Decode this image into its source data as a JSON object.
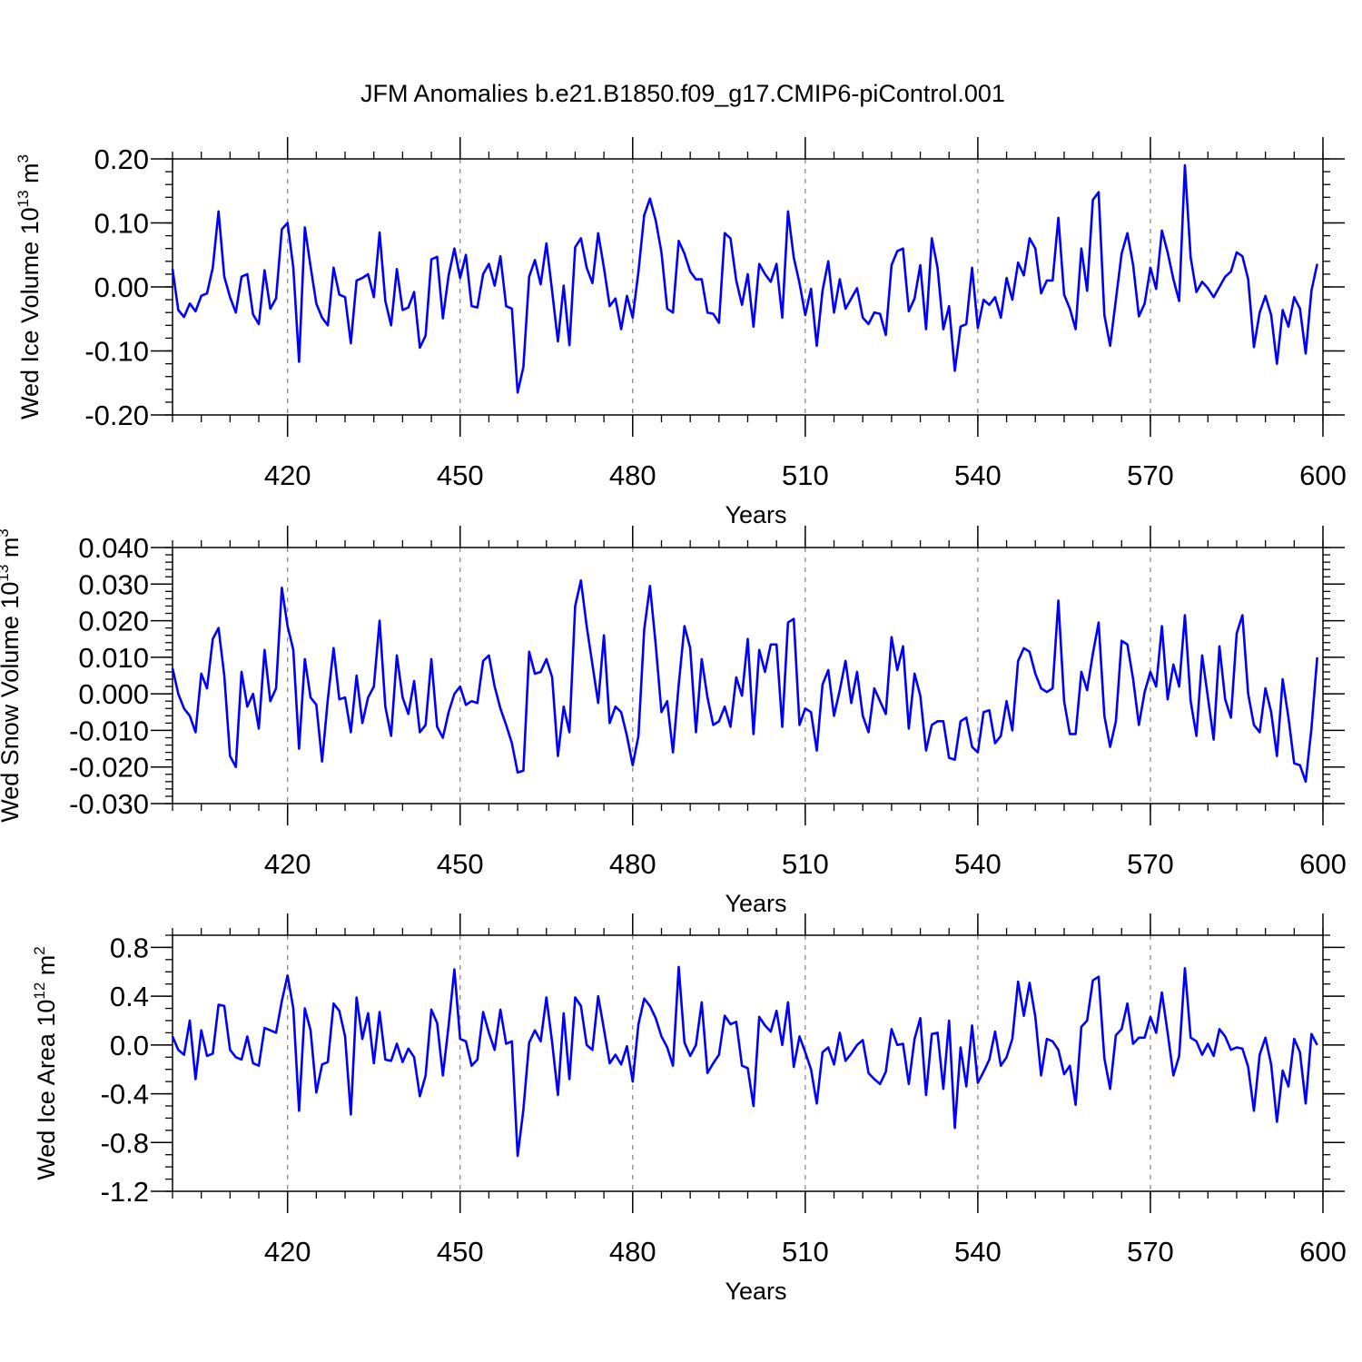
{
  "figure": {
    "title": "JFM Anomalies b.e21.B1850.f09_g17.CMIP6-piControl.001"
  },
  "colors": {
    "series": "#0000ff",
    "axis": "#000000",
    "gridline": "#7f7f7f"
  },
  "chart_data": [
    {
      "type": "line",
      "title": "JFM Anomalies b.e21.B1850.f09_g17.CMIP6-piControl.001",
      "xlabel": "Years",
      "ylabel": {
        "prefix": "Wed Ice Volume 10",
        "exponent": "13",
        "unit": " m",
        "unit_exponent": "3"
      },
      "xlim": [
        400,
        600
      ],
      "ylim": [
        -0.2,
        0.2
      ],
      "x_ticks": [
        420,
        450,
        480,
        510,
        540,
        570,
        600
      ],
      "x_tick_labels": [
        "420",
        "450",
        "480",
        "510",
        "540",
        "570",
        "600"
      ],
      "y_ticks": [
        -0.2,
        -0.1,
        0.0,
        0.1,
        0.2
      ],
      "y_tick_labels": [
        "-0.20",
        "-0.10",
        "0.00",
        "0.10",
        "0.20"
      ],
      "y_minor_step": 0.02,
      "x_minor_step": 5,
      "vertical_gridlines": "dashed at major x ticks",
      "x_start": 400,
      "x_step": 1,
      "values": [
        0.028,
        -0.036,
        -0.047,
        -0.026,
        -0.038,
        -0.014,
        -0.01,
        0.03,
        0.118,
        0.016,
        -0.016,
        -0.04,
        0.016,
        0.02,
        -0.043,
        -0.058,
        0.026,
        -0.034,
        -0.018,
        0.09,
        0.1,
        0.03,
        -0.117,
        0.093,
        0.032,
        -0.026,
        -0.048,
        -0.06,
        0.03,
        -0.012,
        -0.016,
        -0.088,
        0.01,
        0.014,
        0.02,
        -0.016,
        0.085,
        -0.022,
        -0.06,
        0.028,
        -0.036,
        -0.032,
        -0.008,
        -0.095,
        -0.076,
        0.043,
        0.047,
        -0.049,
        0.018,
        0.06,
        0.014,
        0.05,
        -0.03,
        -0.032,
        0.02,
        0.036,
        0.002,
        0.048,
        -0.03,
        -0.034,
        -0.165,
        -0.125,
        0.016,
        0.042,
        0.004,
        0.068,
        -0.007,
        -0.085,
        0.002,
        -0.091,
        0.062,
        0.076,
        0.03,
        0.006,
        0.084,
        0.03,
        -0.03,
        -0.018,
        -0.066,
        -0.014,
        -0.048,
        0.024,
        0.112,
        0.138,
        0.104,
        0.054,
        -0.034,
        -0.04,
        0.072,
        0.052,
        0.024,
        0.012,
        0.012,
        -0.04,
        -0.042,
        -0.056,
        0.084,
        0.076,
        0.01,
        -0.028,
        0.02,
        -0.062,
        0.036,
        0.02,
        0.008,
        0.036,
        -0.048,
        0.118,
        0.046,
        0.006,
        -0.044,
        -0.003,
        -0.092,
        -0.006,
        0.04,
        -0.04,
        0.012,
        -0.034,
        -0.018,
        -0.002,
        -0.048,
        -0.058,
        -0.04,
        -0.042,
        -0.075,
        0.034,
        0.056,
        0.06,
        -0.038,
        -0.018,
        0.034,
        -0.066,
        0.076,
        0.03,
        -0.066,
        -0.03,
        -0.131,
        -0.062,
        -0.058,
        0.03,
        -0.064,
        -0.02,
        -0.028,
        -0.016,
        -0.048,
        0.014,
        -0.02,
        0.038,
        0.018,
        0.076,
        0.06,
        -0.01,
        0.01,
        0.01,
        0.108,
        -0.012,
        -0.034,
        -0.066,
        0.06,
        -0.006,
        0.136,
        0.148,
        -0.044,
        -0.092,
        -0.02,
        0.052,
        0.084,
        0.034,
        -0.046,
        -0.026,
        0.03,
        -0.003,
        0.088,
        0.054,
        0.012,
        -0.022,
        0.19,
        0.046,
        -0.008,
        0.008,
        -0.002,
        -0.016,
        0.0,
        0.016,
        0.024,
        0.054,
        0.048,
        0.012,
        -0.094,
        -0.04,
        -0.014,
        -0.044,
        -0.12,
        -0.036,
        -0.062,
        -0.016,
        -0.034,
        -0.104,
        -0.006,
        0.036
      ]
    },
    {
      "type": "line",
      "xlabel": "Years",
      "ylabel": {
        "prefix": "Wed Snow Volume 10",
        "exponent": "13",
        "unit": " m",
        "unit_exponent": "3"
      },
      "xlim": [
        400,
        600
      ],
      "ylim": [
        -0.03,
        0.04
      ],
      "x_ticks": [
        420,
        450,
        480,
        510,
        540,
        570,
        600
      ],
      "x_tick_labels": [
        "420",
        "450",
        "480",
        "510",
        "540",
        "570",
        "600"
      ],
      "y_ticks": [
        -0.03,
        -0.02,
        -0.01,
        0.0,
        0.01,
        0.02,
        0.03,
        0.04
      ],
      "y_tick_labels": [
        "-0.030",
        "-0.020",
        "-0.010",
        "0.000",
        "0.010",
        "0.020",
        "0.030",
        "0.040"
      ],
      "y_minor_step": 0.002,
      "x_minor_step": 5,
      "vertical_gridlines": "dashed at major x ticks",
      "x_start": 400,
      "x_step": 1,
      "values": [
        0.007,
        0.0,
        -0.004,
        -0.006,
        -0.0105,
        0.0055,
        0.0015,
        0.015,
        0.018,
        0.005,
        -0.017,
        -0.02,
        0.006,
        -0.0035,
        0.0,
        -0.0095,
        0.012,
        -0.002,
        0.0015,
        0.029,
        0.0185,
        0.012,
        -0.015,
        0.0095,
        -0.001,
        -0.003,
        -0.0185,
        -0.0015,
        0.0125,
        -0.0015,
        -0.001,
        -0.0105,
        0.005,
        -0.008,
        -0.001,
        0.002,
        0.02,
        -0.0035,
        -0.0115,
        0.0105,
        -0.001,
        -0.0055,
        0.0035,
        -0.0105,
        -0.0085,
        0.0095,
        -0.009,
        -0.012,
        -0.005,
        0.0,
        0.002,
        -0.003,
        -0.002,
        -0.0025,
        0.009,
        0.0105,
        0.002,
        -0.004,
        -0.0085,
        -0.0135,
        -0.0215,
        -0.021,
        0.0115,
        0.0055,
        0.006,
        0.0095,
        0.0045,
        -0.017,
        -0.0035,
        -0.0105,
        0.024,
        0.031,
        0.0185,
        0.008,
        -0.0025,
        0.016,
        -0.008,
        -0.0035,
        -0.005,
        -0.0115,
        -0.0195,
        -0.0115,
        0.0175,
        0.0295,
        0.0135,
        -0.005,
        -0.002,
        -0.016,
        0.0025,
        0.0185,
        0.0125,
        -0.0105,
        0.0095,
        -0.001,
        -0.0085,
        -0.0075,
        -0.0035,
        -0.009,
        0.0045,
        -0.0005,
        0.015,
        -0.011,
        0.012,
        0.006,
        0.0135,
        0.0135,
        -0.009,
        0.0195,
        0.0205,
        -0.0085,
        -0.004,
        -0.005,
        -0.0155,
        0.0025,
        0.0065,
        -0.006,
        0.001,
        0.009,
        -0.0025,
        0.006,
        -0.006,
        -0.0105,
        0.0015,
        -0.002,
        -0.0055,
        0.0155,
        0.0065,
        0.013,
        -0.0095,
        0.0055,
        -0.0005,
        -0.0155,
        -0.0085,
        -0.0075,
        -0.0075,
        -0.0175,
        -0.018,
        -0.0075,
        -0.0065,
        -0.0145,
        -0.016,
        -0.005,
        -0.0045,
        -0.0135,
        -0.0115,
        -0.002,
        -0.01,
        0.009,
        0.0125,
        0.0115,
        0.0055,
        0.0015,
        0.0005,
        0.0015,
        0.0255,
        -0.002,
        -0.011,
        -0.011,
        0.006,
        0.001,
        0.011,
        0.0195,
        -0.006,
        -0.0145,
        -0.0075,
        0.0145,
        0.0135,
        0.004,
        -0.0085,
        0.0005,
        0.006,
        0.002,
        0.0185,
        -0.0015,
        0.008,
        0.002,
        0.0215,
        -0.002,
        -0.0115,
        0.0105,
        -0.001,
        -0.0125,
        0.013,
        -0.0015,
        -0.0065,
        0.0165,
        0.0215,
        0.0,
        -0.0085,
        -0.0105,
        0.0015,
        -0.005,
        -0.017,
        0.004,
        -0.0065,
        -0.019,
        -0.0195,
        -0.024,
        -0.0095,
        0.01
      ]
    },
    {
      "type": "line",
      "xlabel": "Years",
      "ylabel": {
        "prefix": "Wed Ice Area 10",
        "exponent": "12",
        "unit": " m",
        "unit_exponent": "2"
      },
      "xlim": [
        400,
        600
      ],
      "ylim": [
        -1.2,
        0.9
      ],
      "x_ticks": [
        420,
        450,
        480,
        510,
        540,
        570,
        600
      ],
      "x_tick_labels": [
        "420",
        "450",
        "480",
        "510",
        "540",
        "570",
        "600"
      ],
      "y_ticks": [
        -1.2,
        -0.8,
        -0.4,
        0.0,
        0.4,
        0.8
      ],
      "y_tick_labels": [
        "-1.2",
        "-0.8",
        "-0.4",
        "0.0",
        "0.4",
        "0.8"
      ],
      "y_minor_step": 0.1,
      "x_minor_step": 5,
      "vertical_gridlines": "dashed at major x ticks",
      "x_start": 400,
      "x_step": 1,
      "values": [
        0.07,
        -0.04,
        -0.08,
        0.2,
        -0.28,
        0.12,
        -0.09,
        -0.07,
        0.33,
        0.32,
        -0.04,
        -0.1,
        -0.12,
        0.07,
        -0.15,
        -0.17,
        0.14,
        0.12,
        0.1,
        0.36,
        0.57,
        0.3,
        -0.54,
        0.3,
        0.12,
        -0.39,
        -0.16,
        -0.14,
        0.34,
        0.28,
        0.07,
        -0.57,
        0.39,
        0.05,
        0.26,
        -0.15,
        0.27,
        -0.12,
        -0.13,
        0.01,
        -0.14,
        -0.03,
        -0.1,
        -0.42,
        -0.25,
        0.29,
        0.18,
        -0.25,
        0.16,
        0.62,
        0.05,
        0.03,
        -0.17,
        -0.12,
        0.27,
        0.1,
        -0.04,
        0.29,
        0.01,
        0.03,
        -0.91,
        -0.53,
        0.02,
        0.12,
        0.03,
        0.39,
        0.02,
        -0.41,
        0.26,
        -0.28,
        0.39,
        0.32,
        0.0,
        -0.04,
        0.4,
        0.13,
        -0.15,
        -0.08,
        -0.16,
        -0.01,
        -0.3,
        0.17,
        0.38,
        0.32,
        0.22,
        0.07,
        -0.02,
        -0.17,
        0.64,
        0.02,
        -0.09,
        0.0,
        0.35,
        -0.23,
        -0.15,
        -0.08,
        0.24,
        0.17,
        0.19,
        -0.17,
        -0.19,
        -0.5,
        0.23,
        0.16,
        0.11,
        0.28,
        0.0,
        0.35,
        -0.18,
        0.07,
        -0.06,
        -0.2,
        -0.48,
        -0.06,
        -0.02,
        -0.16,
        0.1,
        -0.13,
        -0.07,
        0.0,
        0.04,
        -0.23,
        -0.28,
        -0.32,
        -0.22,
        0.13,
        0.0,
        0.01,
        -0.32,
        0.05,
        0.22,
        -0.41,
        0.09,
        0.1,
        -0.36,
        0.2,
        -0.68,
        -0.02,
        -0.34,
        0.16,
        -0.31,
        -0.22,
        -0.12,
        0.11,
        -0.17,
        -0.1,
        0.05,
        0.52,
        0.24,
        0.51,
        0.23,
        -0.25,
        0.05,
        0.03,
        -0.04,
        -0.24,
        -0.17,
        -0.49,
        0.15,
        0.2,
        0.53,
        0.56,
        -0.11,
        -0.36,
        0.08,
        0.13,
        0.34,
        0.01,
        0.06,
        0.06,
        0.23,
        0.1,
        0.43,
        0.1,
        -0.25,
        -0.09,
        0.63,
        0.06,
        0.03,
        -0.08,
        0.01,
        -0.09,
        0.13,
        0.07,
        -0.04,
        -0.02,
        -0.03,
        -0.18,
        -0.54,
        -0.08,
        0.06,
        -0.16,
        -0.63,
        -0.21,
        -0.34,
        0.05,
        -0.06,
        -0.48,
        0.09,
        0.0
      ]
    }
  ]
}
